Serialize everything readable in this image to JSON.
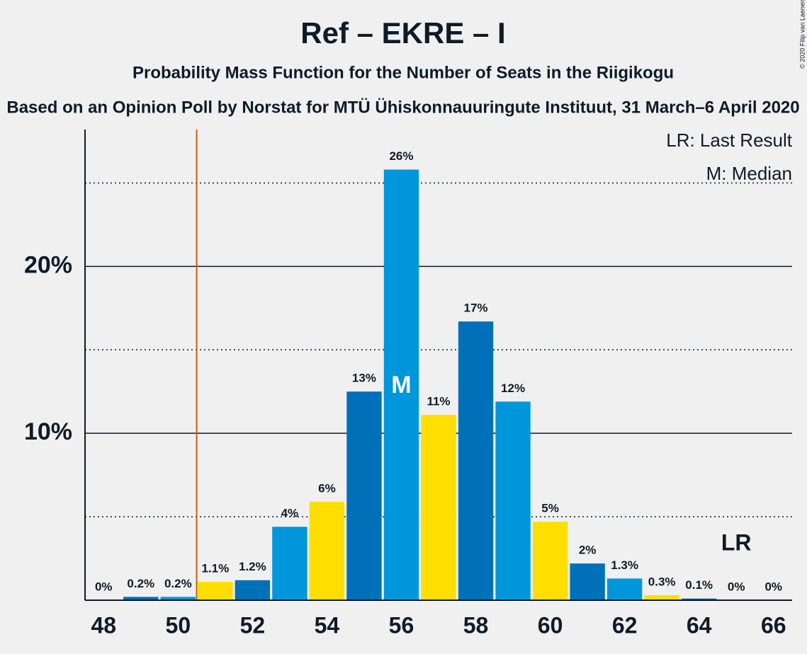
{
  "chart_data": {
    "type": "bar",
    "title": "Ref – EKRE – I",
    "subtitle": "Probability Mass Function for the Number of Seats in the Riigikogu",
    "caption": "Based on an Opinion Poll by Norstat for MTÜ Ühiskonnauuringute Instituut, 31 March–6 April 2020",
    "copyright": "© 2020 Filip van Laenen",
    "x": [
      48,
      49,
      50,
      51,
      52,
      53,
      54,
      55,
      56,
      57,
      58,
      59,
      60,
      61,
      62,
      63,
      64,
      65,
      66
    ],
    "values": [
      0,
      0.2,
      0.2,
      1.1,
      1.2,
      4.4,
      5.9,
      12.5,
      25.8,
      11.1,
      16.7,
      11.9,
      4.7,
      2.2,
      1.3,
      0.3,
      0.1,
      0,
      0
    ],
    "value_labels": [
      "0%",
      "0.2%",
      "0.2%",
      "1.1%",
      "1.2%",
      "4%",
      "6%",
      "13%",
      "26%",
      "11%",
      "17%",
      "12%",
      "5%",
      "2%",
      "1.3%",
      "0.3%",
      "0.1%",
      "0%",
      "0%"
    ],
    "colors": [
      "#ffde00",
      "#0070b8",
      "#0096db",
      "#ffde00",
      "#0070b8",
      "#0096db",
      "#ffde00",
      "#0070b8",
      "#0096db",
      "#ffde00",
      "#0070b8",
      "#0096db",
      "#ffde00",
      "#0070b8",
      "#0096db",
      "#ffde00",
      "#0070b8",
      "#0096db",
      "#ffde00"
    ],
    "xlim": [
      47.5,
      66.5
    ],
    "xticks": [
      48,
      50,
      52,
      54,
      56,
      58,
      60,
      62,
      64,
      66
    ],
    "ylim": [
      0,
      28.2
    ],
    "yticks": [
      {
        "value": 10,
        "label": "10%"
      },
      {
        "value": 20,
        "label": "20%"
      }
    ],
    "minor_yticks": [
      5,
      15,
      25
    ],
    "last_result_line": {
      "x": 50.5,
      "color": "#c0601a"
    },
    "last_result_label": {
      "text": "LR",
      "x": 65
    },
    "median": {
      "text": "M",
      "x": 56
    },
    "legend": [
      "LR: Last Result",
      "M: Median"
    ]
  }
}
